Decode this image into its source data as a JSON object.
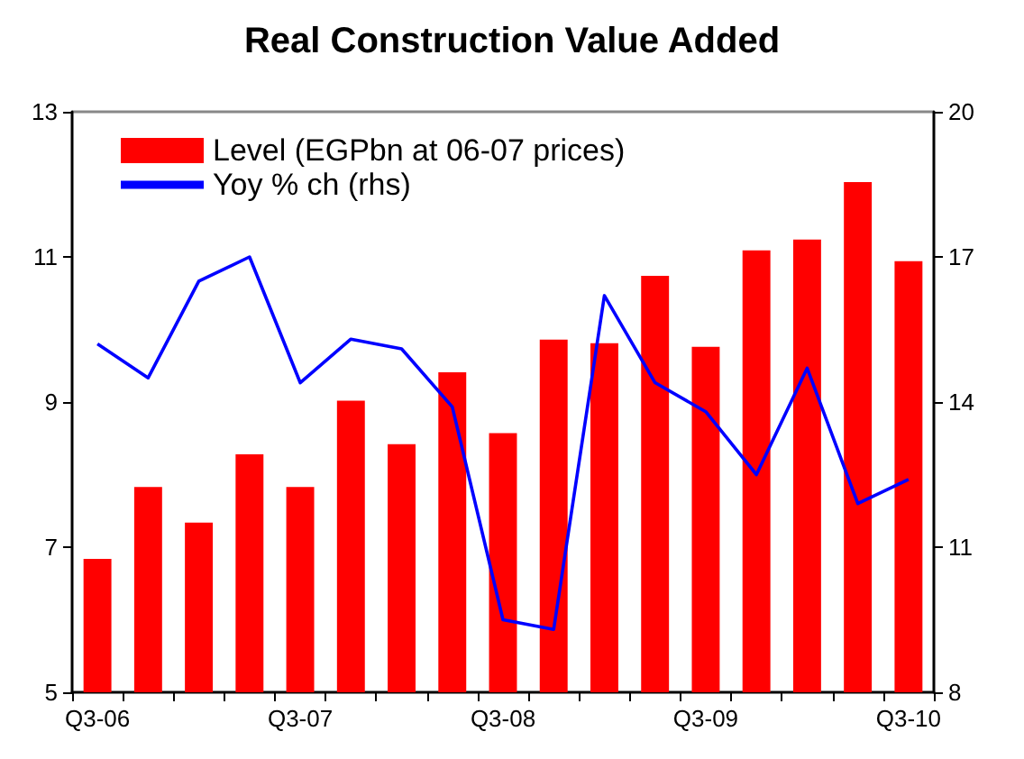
{
  "chart_data": {
    "type": "bar",
    "title": "Real Construction Value Added",
    "categories": [
      "Q3-06",
      null,
      null,
      null,
      "Q3-07",
      null,
      null,
      null,
      "Q3-08",
      null,
      null,
      null,
      "Q3-09",
      null,
      null,
      null,
      "Q3-10"
    ],
    "series": [
      {
        "name": "Level (EGPbn at 06-07 prices)",
        "color": "#ff0000",
        "values": [
          6.84,
          7.83,
          7.34,
          8.28,
          7.83,
          9.02,
          8.42,
          9.41,
          8.57,
          9.86,
          9.81,
          10.74,
          9.76,
          11.09,
          11.24,
          12.03,
          10.94
        ]
      },
      {
        "name": "Yoy % ch (rhs)",
        "type": "line",
        "axis": "y2",
        "color": "#0000ff",
        "values": [
          15.2,
          14.5,
          16.5,
          17.0,
          14.4,
          15.3,
          15.1,
          13.9,
          9.5,
          9.3,
          16.2,
          14.4,
          13.8,
          12.5,
          14.7,
          11.9,
          12.4
        ]
      }
    ],
    "ylim": [
      5,
      13
    ],
    "yticks": [
      5,
      7,
      9,
      11,
      13
    ],
    "y2lim": [
      8,
      20
    ],
    "y2ticks": [
      8,
      11,
      14,
      17,
      20
    ],
    "grid": false,
    "legend": "top left",
    "marker": "none",
    "line_style": "solid"
  }
}
